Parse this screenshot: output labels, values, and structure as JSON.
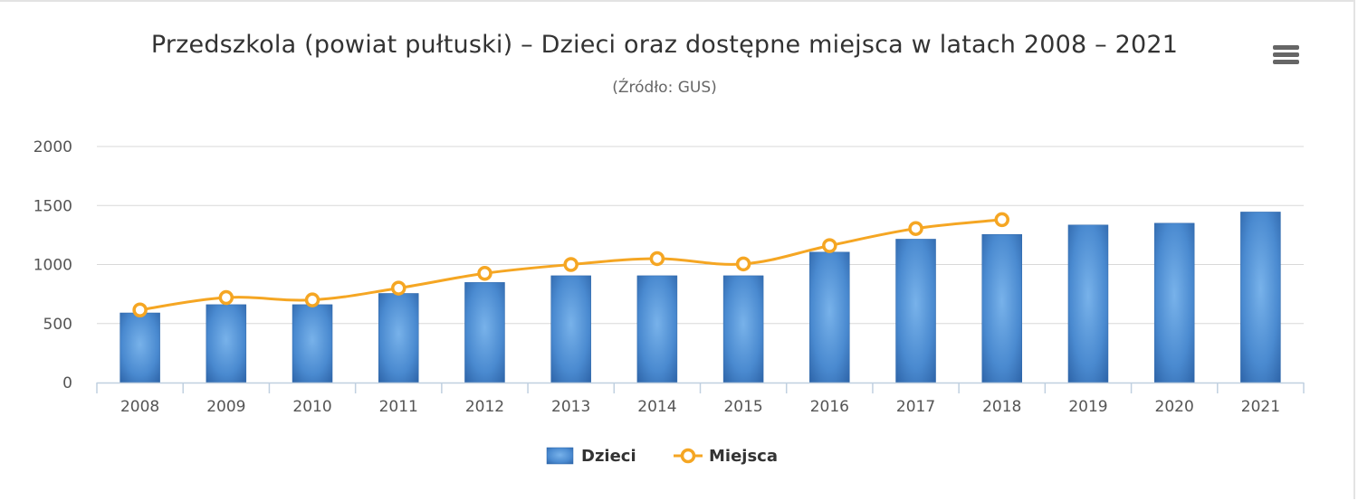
{
  "chart_data": {
    "type": "bar",
    "title": "Przedszkola (powiat pułtuski) – Dzieci oraz dostępne miejsca w latach 2008 – 2021",
    "subtitle": "(Źródło: GUS)",
    "categories": [
      "2008",
      "2009",
      "2010",
      "2011",
      "2012",
      "2013",
      "2014",
      "2015",
      "2016",
      "2017",
      "2018",
      "2019",
      "2020",
      "2021"
    ],
    "series": [
      {
        "name": "Dzieci",
        "type": "bar",
        "color": "#3f7fc4",
        "values": [
          590,
          660,
          660,
          755,
          848,
          905,
          905,
          905,
          1105,
          1215,
          1255,
          1335,
          1350,
          1445
        ]
      },
      {
        "name": "Miejsca",
        "type": "line",
        "color": "#f5a623",
        "values": [
          615,
          720,
          700,
          800,
          925,
          1000,
          1050,
          1005,
          1160,
          1305,
          1380,
          null,
          null,
          null
        ]
      }
    ],
    "y_ticks": [
      "0",
      "500",
      "1000",
      "1500",
      "2000"
    ],
    "ylim": [
      0,
      2000
    ],
    "grid": true,
    "legend": "bottom-center"
  },
  "ui": {
    "menu_icon": "hamburger-menu-icon"
  }
}
